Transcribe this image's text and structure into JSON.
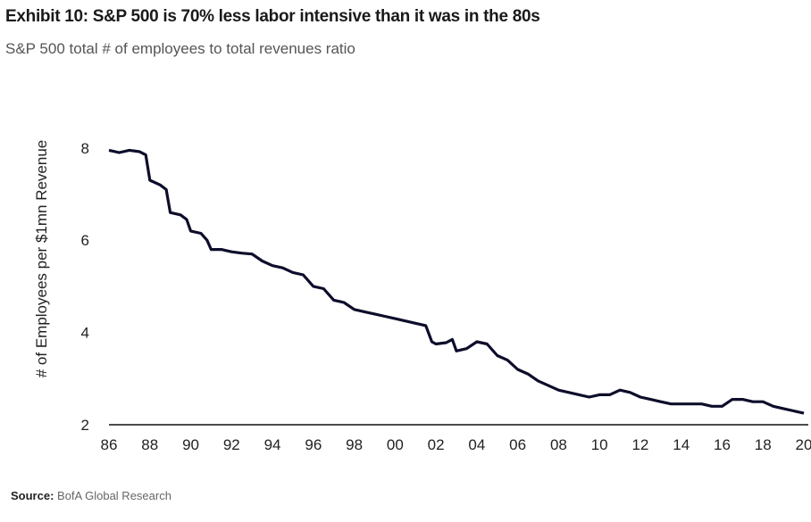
{
  "header": {
    "title": "Exhibit 10: S&P 500 is 70% less labor intensive than it was in the 80s",
    "subtitle": "S&P 500 total # of employees to total revenues ratio"
  },
  "footer": {
    "source_label": "Source:",
    "source_text": "BofA Global Research"
  },
  "chart_data": {
    "type": "line",
    "title": "Exhibit 10: S&P 500 is 70% less labor intensive than it was in the 80s",
    "subtitle": "S&P 500 total # of employees to total revenues ratio",
    "xlabel": "",
    "ylabel": "# of Employees per $1mn Revenue",
    "xlim": [
      1986,
      2020
    ],
    "ylim": [
      2,
      8.5
    ],
    "x_ticks": [
      "86",
      "88",
      "90",
      "92",
      "94",
      "96",
      "98",
      "00",
      "02",
      "04",
      "06",
      "08",
      "10",
      "12",
      "14",
      "16",
      "18",
      "20"
    ],
    "x_tick_values": [
      1986,
      1988,
      1990,
      1992,
      1994,
      1996,
      1998,
      2000,
      2002,
      2004,
      2006,
      2008,
      2010,
      2012,
      2014,
      2016,
      2018,
      2020
    ],
    "y_ticks": [
      2,
      4,
      6,
      8
    ],
    "grid": false,
    "legend": "none",
    "line_color": "#0d0d2b",
    "series": [
      {
        "x": [
          1986.0,
          1986.5,
          1987.0,
          1987.5,
          1987.8,
          1988.0,
          1988.5,
          1988.8,
          1989.0,
          1989.5,
          1989.8,
          1990.0,
          1990.5,
          1990.8,
          1991.0,
          1991.5,
          1992.0,
          1992.5,
          1993.0,
          1993.5,
          1994.0,
          1994.5,
          1995.0,
          1995.5,
          1996.0,
          1996.5,
          1997.0,
          1997.5,
          1998.0,
          1998.5,
          1999.0,
          1999.5,
          2000.0,
          2000.5,
          2001.0,
          2001.5,
          2001.8,
          2002.0,
          2002.5,
          2002.8,
          2003.0,
          2003.5,
          2004.0,
          2004.5,
          2005.0,
          2005.5,
          2006.0,
          2006.5,
          2007.0,
          2007.5,
          2008.0,
          2008.5,
          2009.0,
          2009.5,
          2010.0,
          2010.5,
          2011.0,
          2011.5,
          2012.0,
          2012.5,
          2013.0,
          2013.5,
          2014.0,
          2014.5,
          2015.0,
          2015.5,
          2016.0,
          2016.5,
          2017.0,
          2017.5,
          2018.0,
          2018.5,
          2019.0,
          2019.5,
          2020.0
        ],
        "y": [
          7.95,
          7.9,
          7.95,
          7.92,
          7.85,
          7.3,
          7.2,
          7.1,
          6.6,
          6.55,
          6.45,
          6.2,
          6.15,
          6.0,
          5.8,
          5.8,
          5.75,
          5.72,
          5.7,
          5.55,
          5.45,
          5.4,
          5.3,
          5.25,
          5.0,
          4.95,
          4.7,
          4.65,
          4.5,
          4.45,
          4.4,
          4.35,
          4.3,
          4.25,
          4.2,
          4.15,
          3.8,
          3.75,
          3.78,
          3.85,
          3.6,
          3.65,
          3.8,
          3.75,
          3.5,
          3.4,
          3.2,
          3.1,
          2.95,
          2.85,
          2.75,
          2.7,
          2.65,
          2.6,
          2.65,
          2.65,
          2.75,
          2.7,
          2.6,
          2.55,
          2.5,
          2.45,
          2.45,
          2.45,
          2.45,
          2.4,
          2.4,
          2.55,
          2.55,
          2.5,
          2.5,
          2.4,
          2.35,
          2.3,
          2.25
        ]
      }
    ]
  }
}
